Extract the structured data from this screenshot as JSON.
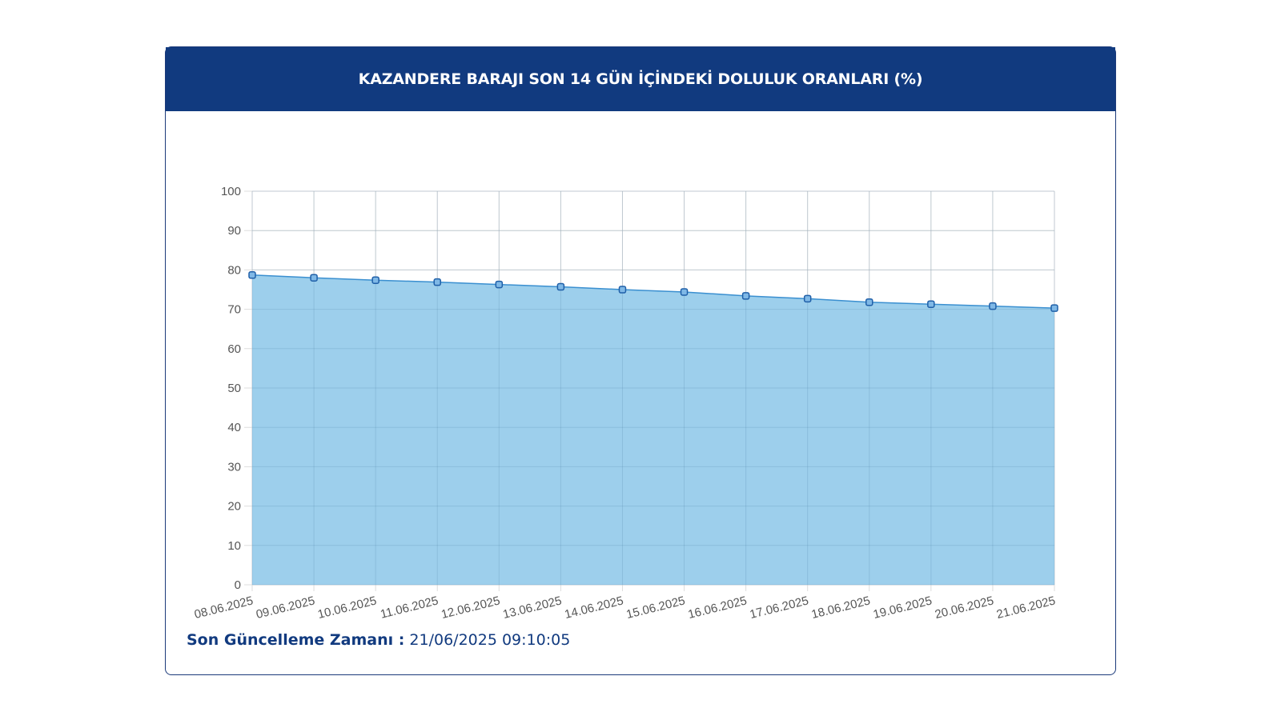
{
  "card": {
    "title": "KAZANDERE BARAJI SON 14 GÜN İÇİNDEKİ DOLULUK ORANLARI (%)"
  },
  "footer": {
    "update_label": "Son Güncelleme Zamanı :",
    "update_value": "21/06/2025 09:10:05"
  },
  "colors": {
    "header_bg": "#113a7f",
    "area_fill": "#9dcfec",
    "line": "#3a8fd0",
    "marker_fill": "#7fb8e6",
    "marker_stroke": "#1f5fa8",
    "grid": "#dddddd"
  },
  "chart_data": {
    "type": "area",
    "title": "KAZANDERE BARAJI SON 14 GÜN İÇİNDEKİ DOLULUK ORANLARI (%)",
    "categories": [
      "08.06.2025",
      "09.06.2025",
      "10.06.2025",
      "11.06.2025",
      "12.06.2025",
      "13.06.2025",
      "14.06.2025",
      "15.06.2025",
      "16.06.2025",
      "17.06.2025",
      "18.06.2025",
      "19.06.2025",
      "20.06.2025",
      "21.06.2025"
    ],
    "values": [
      78.7,
      78.0,
      77.4,
      76.9,
      76.3,
      75.7,
      75.0,
      74.4,
      73.4,
      72.7,
      71.8,
      71.3,
      70.8,
      70.3
    ],
    "ylim": [
      0,
      100
    ],
    "yticks": [
      0,
      10,
      20,
      30,
      40,
      50,
      60,
      70,
      80,
      90,
      100
    ],
    "grid": true,
    "legend": "none"
  }
}
